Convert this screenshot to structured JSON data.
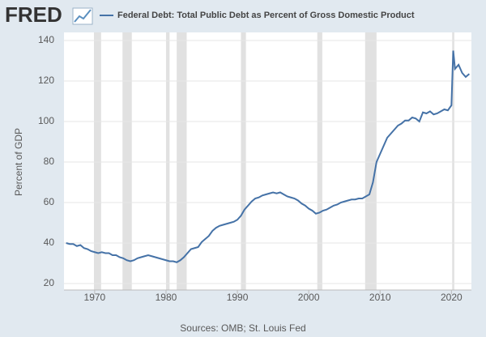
{
  "logo": "FRED",
  "chart_data": {
    "type": "line",
    "title": "Federal Debt: Total Public Debt as Percent of Gross Domestic Product",
    "y_label": "Percent of GDP",
    "source": "Sources: OMB; St. Louis Fed",
    "x": [
      1966,
      1966.5,
      1967,
      1967.5,
      1968,
      1968.5,
      1969,
      1969.5,
      1970,
      1970.5,
      1971,
      1971.5,
      1972,
      1972.5,
      1973,
      1973.5,
      1974,
      1974.5,
      1975,
      1975.5,
      1976,
      1976.5,
      1977,
      1977.5,
      1978,
      1978.5,
      1979,
      1979.5,
      1980,
      1980.5,
      1981,
      1981.5,
      1982,
      1982.5,
      1983,
      1983.5,
      1984,
      1984.5,
      1985,
      1985.5,
      1986,
      1986.5,
      1987,
      1987.5,
      1988,
      1988.5,
      1989,
      1989.5,
      1990,
      1990.5,
      1991,
      1991.5,
      1992,
      1992.5,
      1993,
      1993.5,
      1994,
      1994.5,
      1995,
      1995.5,
      1996,
      1996.5,
      1997,
      1997.5,
      1998,
      1998.5,
      1999,
      1999.5,
      2000,
      2000.5,
      2001,
      2001.5,
      2002,
      2002.5,
      2003,
      2003.5,
      2004,
      2004.5,
      2005,
      2005.5,
      2006,
      2006.5,
      2007,
      2007.5,
      2008,
      2008.5,
      2009,
      2009.5,
      2010,
      2010.5,
      2011,
      2011.5,
      2012,
      2012.5,
      2013,
      2013.5,
      2014,
      2014.5,
      2015,
      2015.5,
      2016,
      2016.5,
      2017,
      2017.5,
      2018,
      2018.5,
      2019,
      2019.5,
      2020,
      2020.25,
      2020.5,
      2021,
      2021.5,
      2022,
      2022.5
    ],
    "series": [
      {
        "name": "Federal Debt: Total Public Debt as Percent of Gross Domestic Product",
        "color": "#4572a7",
        "values": [
          40,
          39.5,
          39.5,
          38.5,
          39,
          37.5,
          37,
          36,
          35.5,
          35,
          35.5,
          35,
          35,
          34,
          34,
          33,
          32.5,
          31.5,
          31,
          31.5,
          32.5,
          33,
          33.5,
          34,
          33.5,
          33,
          32.5,
          32,
          31.5,
          31,
          31,
          30.5,
          31.5,
          33,
          35,
          37,
          37.5,
          38,
          40.5,
          42,
          43.5,
          46,
          47.5,
          48.5,
          49,
          49.5,
          50,
          50.5,
          51.5,
          53.5,
          56.5,
          58.5,
          60.5,
          62,
          62.5,
          63.5,
          64,
          64.5,
          65,
          64.5,
          65,
          64,
          63,
          62.5,
          62,
          61,
          59.5,
          58.5,
          57,
          56,
          54.5,
          55,
          56,
          56.5,
          57.5,
          58.5,
          59,
          60,
          60.5,
          61,
          61.5,
          61.5,
          62,
          62,
          63,
          64,
          70,
          80,
          84,
          88,
          92,
          94,
          96,
          98,
          99,
          100.5,
          100.5,
          102,
          101.5,
          100,
          104.5,
          104,
          105,
          103.5,
          104,
          105,
          106,
          105.5,
          108,
          135,
          126,
          128,
          124,
          122,
          123.5
        ]
      }
    ],
    "recessions": [
      [
        1969.9,
        1970.9
      ],
      [
        1973.9,
        1975.2
      ],
      [
        1980.0,
        1980.5
      ],
      [
        1981.5,
        1982.9
      ],
      [
        1990.5,
        1991.2
      ],
      [
        2001.2,
        2001.9
      ],
      [
        2007.9,
        2009.5
      ],
      [
        2020.1,
        2020.4
      ]
    ],
    "recession_color": "#e1e1e1",
    "xlim": [
      1965.7,
      2022.8
    ],
    "xticks": [
      1970,
      1980,
      1990,
      2000,
      2010,
      2020
    ],
    "ylim": [
      20,
      140
    ],
    "yticks": [
      20,
      40,
      60,
      80,
      100,
      120,
      140
    ],
    "grid": true
  }
}
